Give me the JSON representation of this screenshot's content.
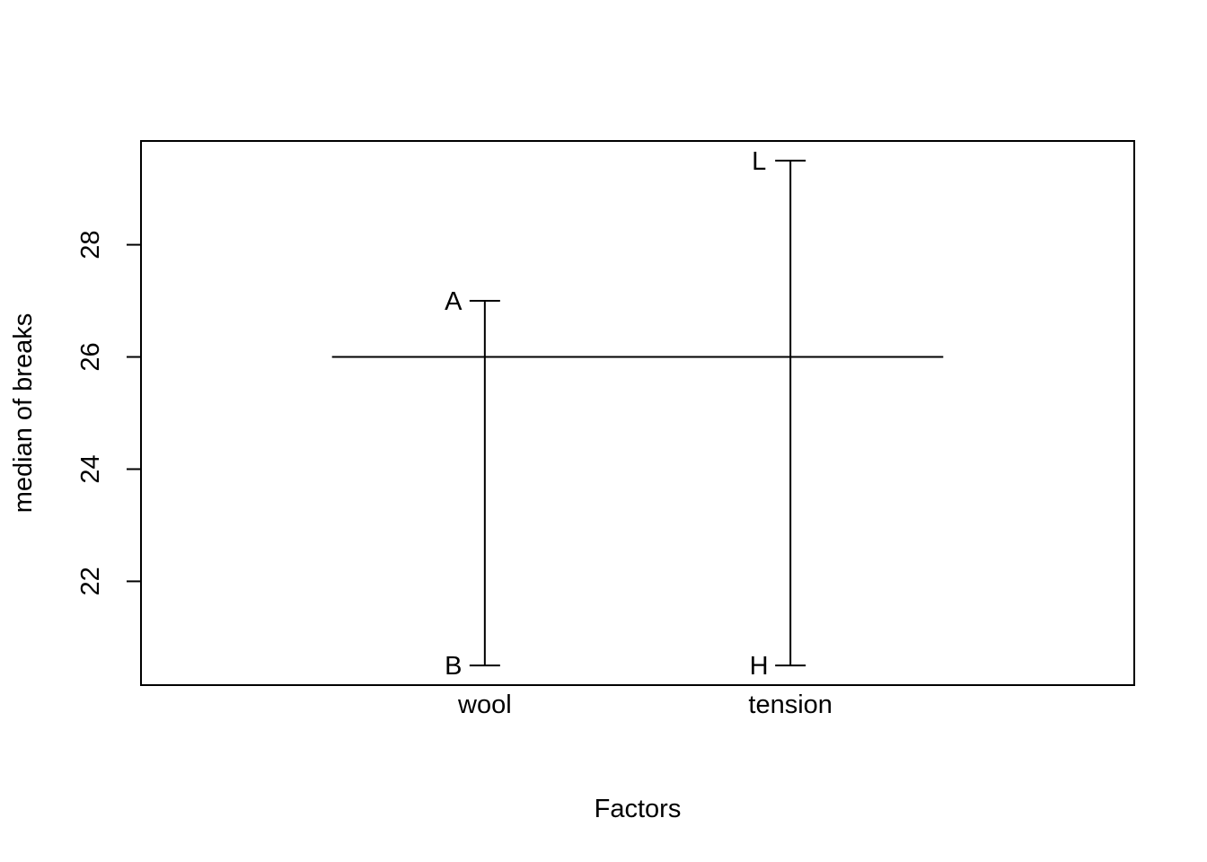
{
  "chart_data": {
    "type": "factor-effects",
    "xlabel": "Factors",
    "ylabel": "median of breaks",
    "ylim": [
      20.15,
      29.85
    ],
    "yticks": [
      22,
      24,
      26,
      28
    ],
    "reference_value": 26,
    "factors": [
      {
        "name": "wool",
        "levels": [
          {
            "label": "A",
            "value": 27
          },
          {
            "label": "B",
            "value": 20.5
          }
        ]
      },
      {
        "name": "tension",
        "levels": [
          {
            "label": "L",
            "value": 29.5
          },
          {
            "label": "H",
            "value": 20.5
          }
        ]
      }
    ]
  }
}
